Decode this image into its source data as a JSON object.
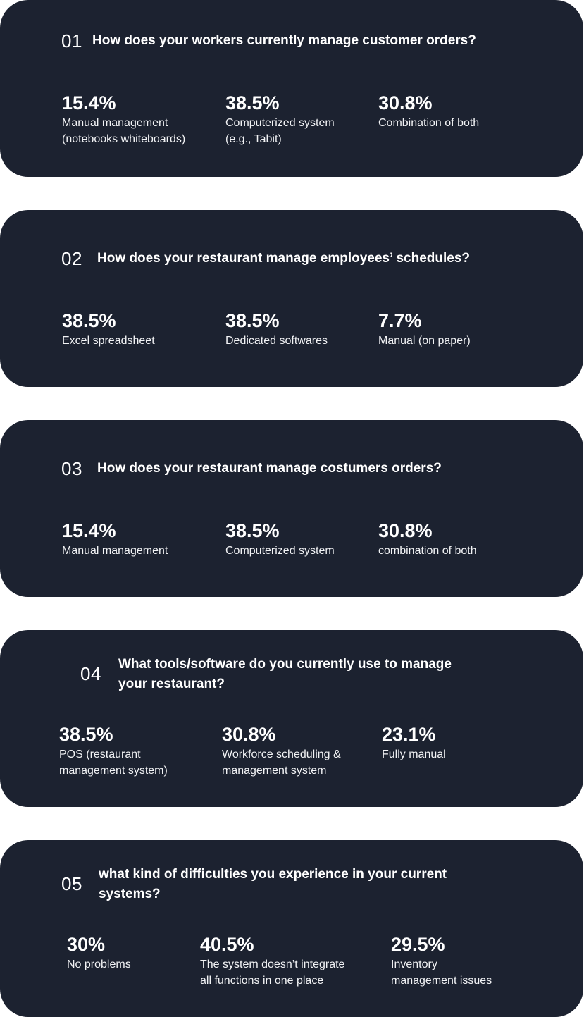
{
  "questions": [
    {
      "number": "01",
      "text": "How does your workers currently manage customer orders?",
      "stats": [
        {
          "value": "15.4%",
          "label": "Manual management\n(notebooks whiteboards)"
        },
        {
          "value": "38.5%",
          "label": "Computerized system\n(e.g., Tabit)"
        },
        {
          "value": "30.8%",
          "label": "Combination of both"
        }
      ]
    },
    {
      "number": "02",
      "text": "How does your restaurant manage employees’ schedules?",
      "stats": [
        {
          "value": "38.5%",
          "label": "Excel spreadsheet"
        },
        {
          "value": "38.5%",
          "label": "Dedicated softwares"
        },
        {
          "value": "7.7%",
          "label": "Manual (on paper)"
        }
      ]
    },
    {
      "number": "03",
      "text": "How does your restaurant manage costumers orders?",
      "stats": [
        {
          "value": "15.4%",
          "label": "Manual management"
        },
        {
          "value": "38.5%",
          "label": "Computerized system"
        },
        {
          "value": "30.8%",
          "label": "combination of both"
        }
      ]
    },
    {
      "number": "04",
      "text": "What tools/software do you currently use to manage\nyour restaurant?",
      "stats": [
        {
          "value": "38.5%",
          "label": "POS (restaurant\nmanagement system)"
        },
        {
          "value": "30.8%",
          "label": "Workforce scheduling  &\nmanagement system"
        },
        {
          "value": "23.1%",
          "label": "Fully manual"
        }
      ]
    },
    {
      "number": "05",
      "text": "what kind of difficulties you experience in your current\nsystems?",
      "stats": [
        {
          "value": "30%",
          "label": "No problems"
        },
        {
          "value": "40.5%",
          "label": "The system doesn’t integrate\nall functions in one place"
        },
        {
          "value": "29.5%",
          "label": "Inventory\nmanagement issues"
        }
      ]
    }
  ]
}
